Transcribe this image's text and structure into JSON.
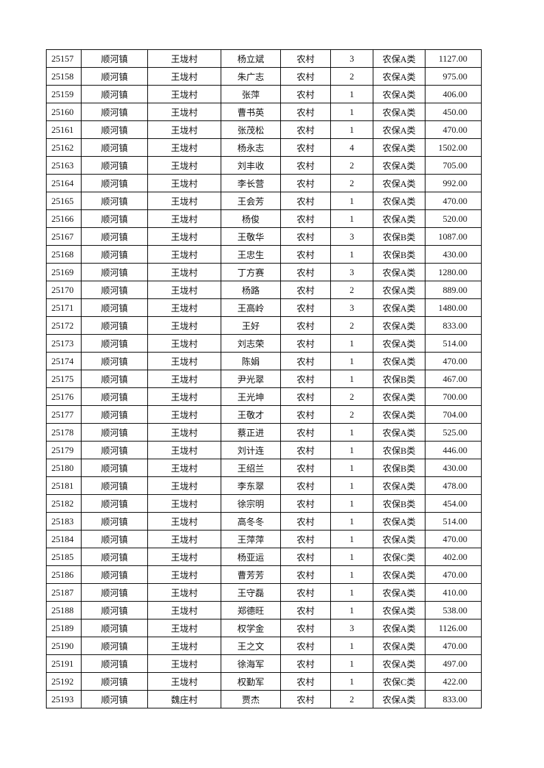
{
  "table": {
    "rows": [
      [
        "25157",
        "顺河镇",
        "王垅村",
        "杨立斌",
        "农村",
        "3",
        "农保A类",
        "1127.00"
      ],
      [
        "25158",
        "顺河镇",
        "王垅村",
        "朱广志",
        "农村",
        "2",
        "农保A类",
        "975.00"
      ],
      [
        "25159",
        "顺河镇",
        "王垅村",
        "张萍",
        "农村",
        "1",
        "农保A类",
        "406.00"
      ],
      [
        "25160",
        "顺河镇",
        "王垅村",
        "曹书英",
        "农村",
        "1",
        "农保A类",
        "450.00"
      ],
      [
        "25161",
        "顺河镇",
        "王垅村",
        "张茂松",
        "农村",
        "1",
        "农保A类",
        "470.00"
      ],
      [
        "25162",
        "顺河镇",
        "王垅村",
        "杨永志",
        "农村",
        "4",
        "农保A类",
        "1502.00"
      ],
      [
        "25163",
        "顺河镇",
        "王垅村",
        "刘丰收",
        "农村",
        "2",
        "农保A类",
        "705.00"
      ],
      [
        "25164",
        "顺河镇",
        "王垅村",
        "李长营",
        "农村",
        "2",
        "农保A类",
        "992.00"
      ],
      [
        "25165",
        "顺河镇",
        "王垅村",
        "王会芳",
        "农村",
        "1",
        "农保A类",
        "470.00"
      ],
      [
        "25166",
        "顺河镇",
        "王垅村",
        "杨俊",
        "农村",
        "1",
        "农保A类",
        "520.00"
      ],
      [
        "25167",
        "顺河镇",
        "王垅村",
        "王敬华",
        "农村",
        "3",
        "农保B类",
        "1087.00"
      ],
      [
        "25168",
        "顺河镇",
        "王垅村",
        "王忠生",
        "农村",
        "1",
        "农保B类",
        "430.00"
      ],
      [
        "25169",
        "顺河镇",
        "王垅村",
        "丁方赛",
        "农村",
        "3",
        "农保A类",
        "1280.00"
      ],
      [
        "25170",
        "顺河镇",
        "王垅村",
        "杨路",
        "农村",
        "2",
        "农保A类",
        "889.00"
      ],
      [
        "25171",
        "顺河镇",
        "王垅村",
        "王高岭",
        "农村",
        "3",
        "农保A类",
        "1480.00"
      ],
      [
        "25172",
        "顺河镇",
        "王垅村",
        "王好",
        "农村",
        "2",
        "农保A类",
        "833.00"
      ],
      [
        "25173",
        "顺河镇",
        "王垅村",
        "刘志荣",
        "农村",
        "1",
        "农保A类",
        "514.00"
      ],
      [
        "25174",
        "顺河镇",
        "王垅村",
        "陈娟",
        "农村",
        "1",
        "农保A类",
        "470.00"
      ],
      [
        "25175",
        "顺河镇",
        "王垅村",
        "尹光翠",
        "农村",
        "1",
        "农保B类",
        "467.00"
      ],
      [
        "25176",
        "顺河镇",
        "王垅村",
        "王光坤",
        "农村",
        "2",
        "农保A类",
        "700.00"
      ],
      [
        "25177",
        "顺河镇",
        "王垅村",
        "王敬才",
        "农村",
        "2",
        "农保A类",
        "704.00"
      ],
      [
        "25178",
        "顺河镇",
        "王垅村",
        "蔡正进",
        "农村",
        "1",
        "农保A类",
        "525.00"
      ],
      [
        "25179",
        "顺河镇",
        "王垅村",
        "刘计连",
        "农村",
        "1",
        "农保B类",
        "446.00"
      ],
      [
        "25180",
        "顺河镇",
        "王垅村",
        "王绍兰",
        "农村",
        "1",
        "农保B类",
        "430.00"
      ],
      [
        "25181",
        "顺河镇",
        "王垅村",
        "李东翠",
        "农村",
        "1",
        "农保A类",
        "478.00"
      ],
      [
        "25182",
        "顺河镇",
        "王垅村",
        "徐宗明",
        "农村",
        "1",
        "农保B类",
        "454.00"
      ],
      [
        "25183",
        "顺河镇",
        "王垅村",
        "高冬冬",
        "农村",
        "1",
        "农保A类",
        "514.00"
      ],
      [
        "25184",
        "顺河镇",
        "王垅村",
        "王萍萍",
        "农村",
        "1",
        "农保A类",
        "470.00"
      ],
      [
        "25185",
        "顺河镇",
        "王垅村",
        "杨亚运",
        "农村",
        "1",
        "农保C类",
        "402.00"
      ],
      [
        "25186",
        "顺河镇",
        "王垅村",
        "曹芳芳",
        "农村",
        "1",
        "农保A类",
        "470.00"
      ],
      [
        "25187",
        "顺河镇",
        "王垅村",
        "王守磊",
        "农村",
        "1",
        "农保A类",
        "410.00"
      ],
      [
        "25188",
        "顺河镇",
        "王垅村",
        "郑德旺",
        "农村",
        "1",
        "农保A类",
        "538.00"
      ],
      [
        "25189",
        "顺河镇",
        "王垅村",
        "权学金",
        "农村",
        "3",
        "农保A类",
        "1126.00"
      ],
      [
        "25190",
        "顺河镇",
        "王垅村",
        "王之文",
        "农村",
        "1",
        "农保A类",
        "470.00"
      ],
      [
        "25191",
        "顺河镇",
        "王垅村",
        "徐海军",
        "农村",
        "1",
        "农保A类",
        "497.00"
      ],
      [
        "25192",
        "顺河镇",
        "王垅村",
        "权勤军",
        "农村",
        "1",
        "农保C类",
        "422.00"
      ],
      [
        "25193",
        "顺河镇",
        "魏庄村",
        "贾杰",
        "农村",
        "2",
        "农保A类",
        "833.00"
      ]
    ]
  }
}
